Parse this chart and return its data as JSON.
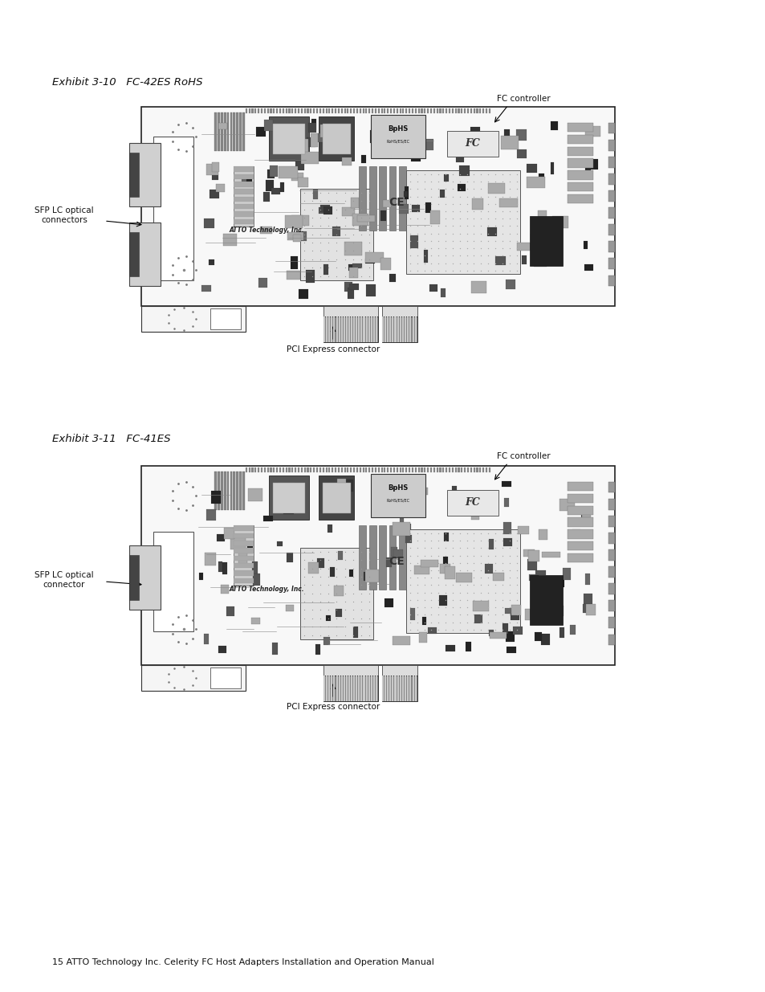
{
  "page_bg": "#ffffff",
  "exhibit1_title": "Exhibit 3-10   FC-42ES RoHS",
  "exhibit2_title": "Exhibit 3-11   FC-41ES",
  "footer": "15 ATTO Technology Inc. Celerity FC Host Adapters Installation and Operation Manual",
  "label_fc1": "FC controller",
  "label_sfp1": "SFP LC optical\nconnectors",
  "label_pci1": "PCI Express connector",
  "label_fc2": "FC controller",
  "label_sfp2": "SFP LC optical\nconnector",
  "label_pci2": "PCI Express connector",
  "title_fs": 9.5,
  "label_fs": 7.5,
  "footer_fs": 8.0
}
